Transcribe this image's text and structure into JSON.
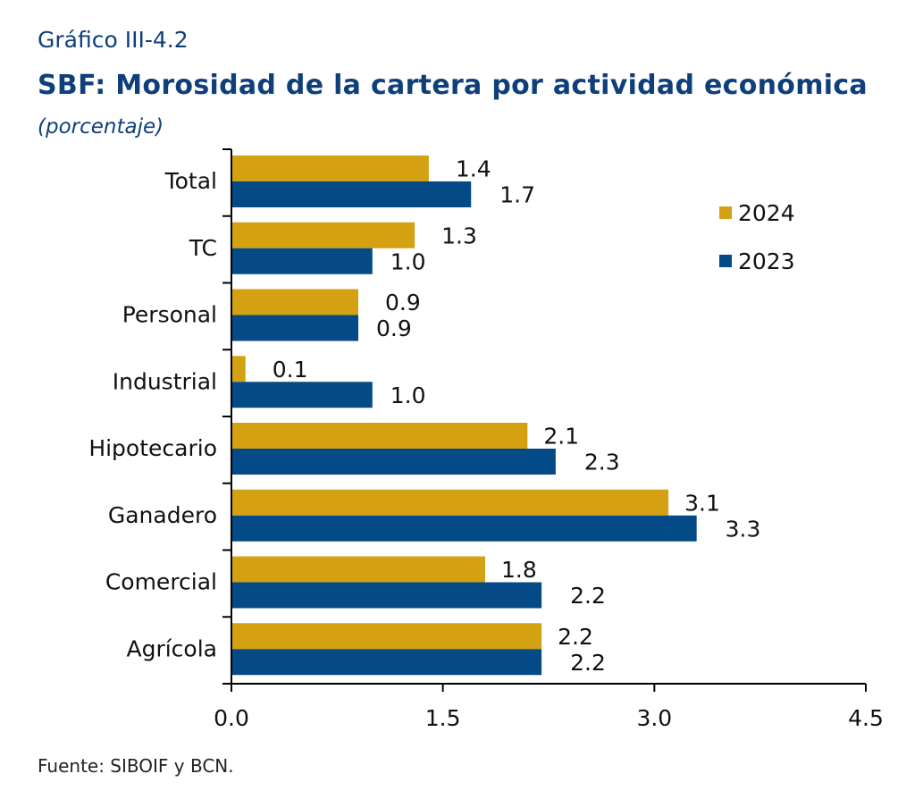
{
  "header": {
    "kicker": "Gráfico III-4.2",
    "title": "SBF: Morosidad de la cartera por actividad económica",
    "subtitle": "(porcentaje)"
  },
  "footer": {
    "source": "Fuente: SIBOIF y BCN."
  },
  "colors": {
    "series_2024": "#d4a112",
    "series_2023": "#044a87",
    "title": "#0f3f7b",
    "axis": "#000000"
  },
  "chart_data": {
    "type": "bar",
    "orientation": "horizontal",
    "categories": [
      "Total",
      "TC",
      "Personal",
      "Industrial",
      "Hipotecario",
      "Ganadero",
      "Comercial",
      "Agrícola"
    ],
    "series": [
      {
        "name": "2024",
        "values": [
          1.4,
          1.3,
          0.9,
          0.1,
          2.1,
          3.1,
          1.8,
          2.2
        ]
      },
      {
        "name": "2023",
        "values": [
          1.7,
          1.0,
          0.9,
          1.0,
          2.3,
          3.3,
          2.2,
          2.2
        ]
      }
    ],
    "value_labels": {
      "2024": [
        "1.4",
        "1.3",
        "0.9",
        "0.1",
        "2.1",
        "3.1",
        "1.8",
        "2.2"
      ],
      "2023": [
        "1.7",
        "1.0",
        "0.9",
        "1.0",
        "2.3",
        "3.3",
        "2.2",
        "2.2"
      ]
    },
    "xlim": [
      0,
      4.5
    ],
    "xticks": [
      "0.0",
      "1.5",
      "3.0",
      "4.5"
    ],
    "legend": {
      "placement": "top-right",
      "entries": [
        "2024",
        "2023"
      ]
    },
    "grid": false
  }
}
